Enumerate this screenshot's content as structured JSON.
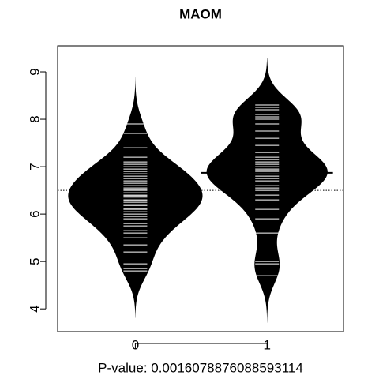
{
  "chart_data": {
    "type": "beanplot",
    "title": "MAOM",
    "xlabel": "P-value: 0.0016078876088593114",
    "categories": [
      "0",
      "1"
    ],
    "observations": [
      [
        4.8,
        4.85,
        4.95,
        5.2,
        5.35,
        5.5,
        5.6,
        5.65,
        5.75,
        5.8,
        5.9,
        5.95,
        6.0,
        6.05,
        6.1,
        6.12,
        6.18,
        6.2,
        6.25,
        6.28,
        6.3,
        6.35,
        6.38,
        6.4,
        6.45,
        6.5,
        6.52,
        6.55,
        6.6,
        6.65,
        6.7,
        6.75,
        6.8,
        6.85,
        6.9,
        6.95,
        7.0,
        7.05,
        7.1,
        7.2,
        7.4,
        7.7,
        7.9
      ],
      [
        4.7,
        4.95,
        5.0,
        5.6,
        5.9,
        6.1,
        6.3,
        6.4,
        6.5,
        6.55,
        6.6,
        6.7,
        6.75,
        6.8,
        6.85,
        6.9,
        6.92,
        6.95,
        7.0,
        7.05,
        7.1,
        7.15,
        7.2,
        7.3,
        7.45,
        7.6,
        7.75,
        7.9,
        8.0,
        8.05,
        8.1,
        8.2,
        8.25,
        8.3
      ]
    ],
    "means": [
      6.33,
      6.87
    ],
    "overall_mean": 6.5,
    "color": "#000000",
    "line_color": "#ffffff",
    "xlim": [
      -0.59,
      1.58
    ],
    "ylim": [
      3.52,
      9.55
    ],
    "yticks": [
      4,
      5,
      6,
      7,
      8,
      9
    ]
  }
}
